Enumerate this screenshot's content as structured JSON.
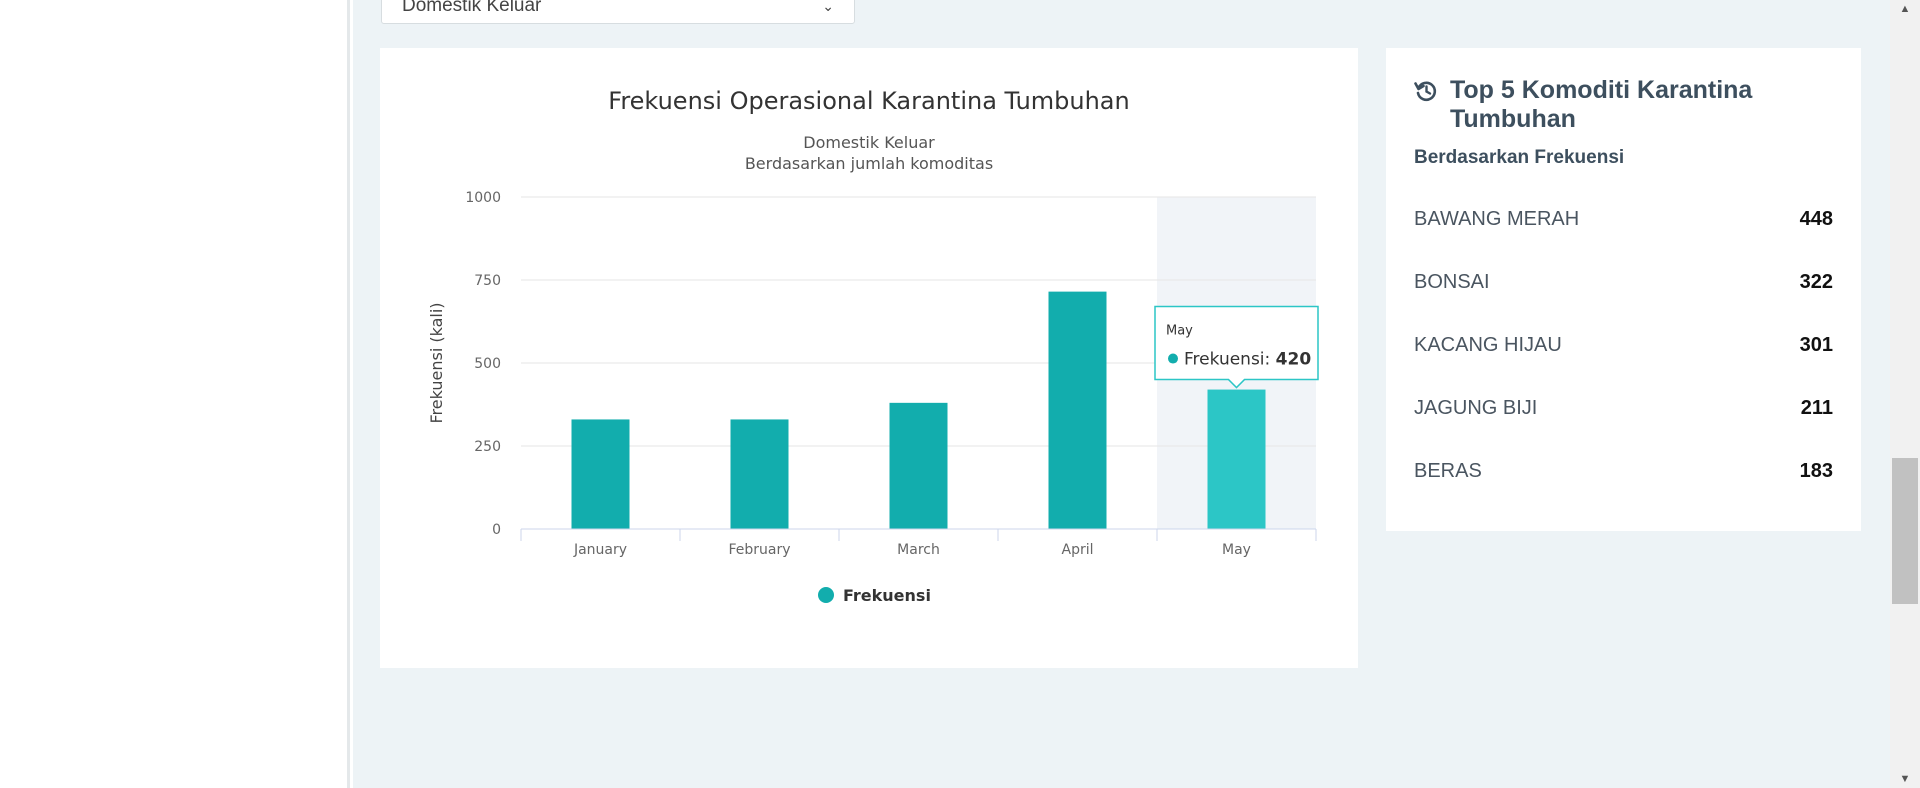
{
  "filter": {
    "selected": "Domestik Keluar"
  },
  "chart_data": {
    "type": "bar",
    "title": "Frekuensi Operasional Karantina Tumbuhan",
    "subtitle": [
      "Domestik Keluar",
      "Berdasarkan jumlah komoditas"
    ],
    "categories": [
      "January",
      "February",
      "March",
      "April",
      "May"
    ],
    "series": [
      {
        "name": "Frekuensi",
        "values": [
          330,
          330,
          380,
          715,
          420
        ]
      }
    ],
    "ylabel": "Frekuensi (kali)",
    "ylim": [
      0,
      1000
    ],
    "yticks": [
      0,
      250,
      500,
      750,
      1000
    ],
    "grid": true,
    "legend": "bottom-center",
    "colors": {
      "bar": "#12adad",
      "bar_hover": "#2cc6c6",
      "hover_band": "#f1f4f8"
    },
    "tooltip": {
      "category": "May",
      "series": "Frekuensi",
      "value": "420",
      "separator": ":"
    },
    "highlighted_index": 4
  },
  "top5": {
    "title": "Top 5 Komoditi Karantina Tumbuhan",
    "subtitle": "Berdasarkan Frekuensi",
    "icon": "history-icon",
    "items": [
      {
        "name": "BAWANG MERAH",
        "value": "448"
      },
      {
        "name": "BONSAI",
        "value": "322"
      },
      {
        "name": "KACANG HIJAU",
        "value": "301"
      },
      {
        "name": "JAGUNG BIJI",
        "value": "211"
      },
      {
        "name": "BERAS",
        "value": "183"
      }
    ]
  }
}
